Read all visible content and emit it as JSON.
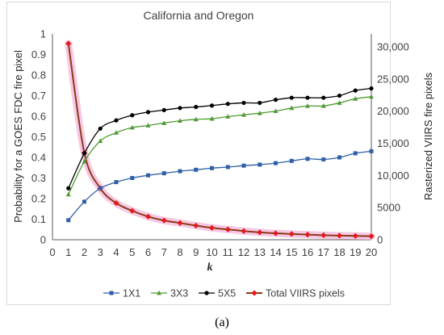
{
  "chart_data": {
    "type": "line",
    "title": "California and Oregon",
    "xlabel": "k",
    "ylabel": "Probability for a GOES FDC fire pixel",
    "y2label": "Rasterized VIIRS fire pixels",
    "x": [
      1,
      2,
      3,
      4,
      5,
      6,
      7,
      8,
      9,
      10,
      11,
      12,
      13,
      14,
      15,
      16,
      17,
      18,
      19,
      20
    ],
    "xlim": [
      0,
      20
    ],
    "ylim": [
      0,
      1
    ],
    "y2lim": [
      0,
      32000
    ],
    "xticks": [
      "0",
      "1",
      "2",
      "3",
      "4",
      "5",
      "6",
      "7",
      "8",
      "9",
      "10",
      "11",
      "12",
      "13",
      "14",
      "15",
      "16",
      "17",
      "18",
      "19",
      "20"
    ],
    "yticks": [
      "0",
      "0.1",
      "0.2",
      "0.3",
      "0.4",
      "0.5",
      "0.6",
      "0.7",
      "0.8",
      "0.9",
      "1"
    ],
    "y2ticks": [
      "0",
      "5000",
      "10,000",
      "15,000",
      "20,000",
      "25,000",
      "30,000"
    ],
    "grid": false,
    "legend_position": "bottom",
    "series": [
      {
        "name": "1X1",
        "axis": "left",
        "color": "#2e5fa8",
        "marker": "square",
        "values": [
          0.095,
          0.185,
          0.25,
          0.28,
          0.3,
          0.313,
          0.323,
          0.333,
          0.34,
          0.348,
          0.353,
          0.36,
          0.365,
          0.372,
          0.383,
          0.393,
          0.39,
          0.4,
          0.42,
          0.43
        ]
      },
      {
        "name": "3X3",
        "axis": "left",
        "color": "#4f9b34",
        "marker": "triangle",
        "values": [
          0.22,
          0.38,
          0.48,
          0.52,
          0.545,
          0.555,
          0.567,
          0.578,
          0.585,
          0.588,
          0.598,
          0.607,
          0.615,
          0.625,
          0.64,
          0.65,
          0.65,
          0.665,
          0.685,
          0.695
        ]
      },
      {
        "name": "5X5",
        "axis": "left",
        "color": "#000000",
        "marker": "circle",
        "values": [
          0.25,
          0.42,
          0.54,
          0.58,
          0.605,
          0.62,
          0.63,
          0.64,
          0.645,
          0.652,
          0.66,
          0.665,
          0.665,
          0.68,
          0.69,
          0.69,
          0.69,
          0.7,
          0.725,
          0.735
        ]
      },
      {
        "name": "Total VIIRS pixels",
        "axis": "right",
        "color": "#e31a1c",
        "marker": "diamond",
        "line_color": "#8b3a1a",
        "values": [
          30500,
          13500,
          8000,
          5700,
          4500,
          3600,
          3000,
          2600,
          2200,
          1850,
          1600,
          1350,
          1150,
          1000,
          900,
          800,
          700,
          650,
          600,
          550
        ]
      }
    ]
  },
  "caption": "(a)"
}
